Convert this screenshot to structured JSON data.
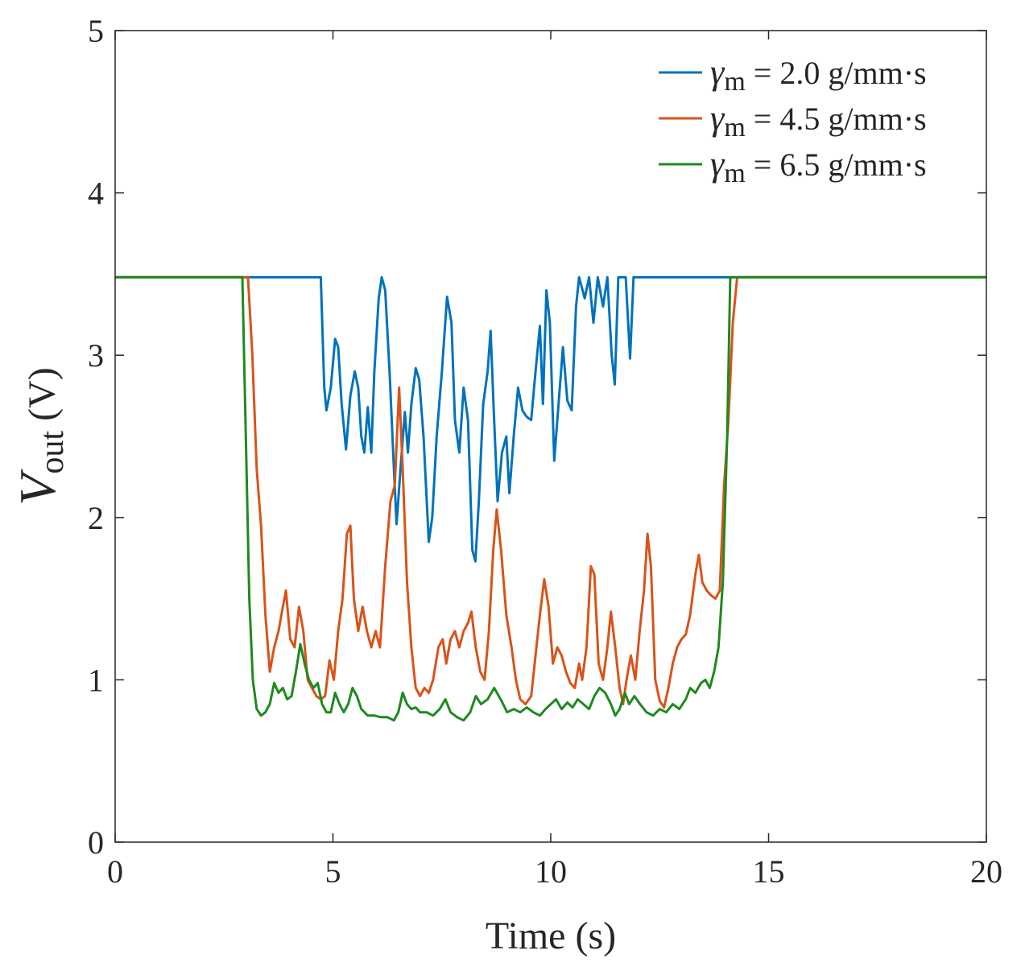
{
  "chart_data": {
    "type": "line",
    "title": "",
    "xlabel": "Time (s)",
    "ylabel": {
      "main": "V",
      "sub": "out",
      "unit": " (V)"
    },
    "xlim": [
      0,
      20
    ],
    "ylim": [
      0,
      5
    ],
    "xticks": [
      0,
      5,
      10,
      15,
      20
    ],
    "yticks": [
      0,
      1,
      2,
      3,
      4,
      5
    ],
    "grid": false,
    "legend_position": "top-right",
    "series": [
      {
        "name": "γm = 2.0 g/mm·s",
        "legend": {
          "symbol": "γ",
          "sub": "m",
          "rest": " = 2.0 g/mm·s"
        },
        "color": "#0072BD",
        "points": [
          [
            0,
            3.48
          ],
          [
            4.72,
            3.48
          ],
          [
            4.8,
            2.8
          ],
          [
            4.85,
            2.66
          ],
          [
            4.95,
            2.8
          ],
          [
            5.05,
            3.1
          ],
          [
            5.12,
            3.05
          ],
          [
            5.2,
            2.7
          ],
          [
            5.3,
            2.42
          ],
          [
            5.4,
            2.75
          ],
          [
            5.5,
            2.9
          ],
          [
            5.58,
            2.8
          ],
          [
            5.65,
            2.5
          ],
          [
            5.72,
            2.4
          ],
          [
            5.8,
            2.68
          ],
          [
            5.88,
            2.4
          ],
          [
            5.95,
            2.9
          ],
          [
            6.05,
            3.35
          ],
          [
            6.12,
            3.48
          ],
          [
            6.2,
            3.4
          ],
          [
            6.3,
            2.9
          ],
          [
            6.4,
            2.3
          ],
          [
            6.46,
            1.96
          ],
          [
            6.55,
            2.3
          ],
          [
            6.65,
            2.65
          ],
          [
            6.72,
            2.4
          ],
          [
            6.8,
            2.7
          ],
          [
            6.9,
            2.92
          ],
          [
            6.98,
            2.85
          ],
          [
            7.08,
            2.5
          ],
          [
            7.2,
            1.85
          ],
          [
            7.28,
            2.0
          ],
          [
            7.38,
            2.5
          ],
          [
            7.5,
            2.9
          ],
          [
            7.62,
            3.36
          ],
          [
            7.72,
            3.2
          ],
          [
            7.8,
            2.6
          ],
          [
            7.9,
            2.4
          ],
          [
            8.0,
            2.8
          ],
          [
            8.1,
            2.6
          ],
          [
            8.2,
            1.8
          ],
          [
            8.27,
            1.73
          ],
          [
            8.35,
            2.1
          ],
          [
            8.45,
            2.7
          ],
          [
            8.55,
            2.9
          ],
          [
            8.62,
            3.15
          ],
          [
            8.7,
            2.6
          ],
          [
            8.78,
            2.1
          ],
          [
            8.88,
            2.4
          ],
          [
            8.98,
            2.5
          ],
          [
            9.05,
            2.15
          ],
          [
            9.15,
            2.5
          ],
          [
            9.25,
            2.8
          ],
          [
            9.35,
            2.66
          ],
          [
            9.45,
            2.62
          ],
          [
            9.55,
            2.6
          ],
          [
            9.65,
            2.9
          ],
          [
            9.75,
            3.18
          ],
          [
            9.82,
            2.7
          ],
          [
            9.9,
            3.4
          ],
          [
            9.98,
            3.2
          ],
          [
            10.08,
            2.35
          ],
          [
            10.18,
            2.7
          ],
          [
            10.28,
            3.05
          ],
          [
            10.38,
            2.72
          ],
          [
            10.48,
            2.66
          ],
          [
            10.58,
            3.3
          ],
          [
            10.65,
            3.48
          ],
          [
            10.78,
            3.35
          ],
          [
            10.88,
            3.48
          ],
          [
            10.98,
            3.2
          ],
          [
            11.08,
            3.48
          ],
          [
            11.2,
            3.3
          ],
          [
            11.3,
            3.48
          ],
          [
            11.4,
            3.0
          ],
          [
            11.47,
            2.82
          ],
          [
            11.55,
            3.48
          ],
          [
            11.72,
            3.48
          ],
          [
            11.82,
            2.98
          ],
          [
            11.9,
            3.48
          ],
          [
            20,
            3.48
          ]
        ]
      },
      {
        "name": "γm = 4.5 g/mm·s",
        "legend": {
          "symbol": "γ",
          "sub": "m",
          "rest": " = 4.5 g/mm·s"
        },
        "color": "#D95319",
        "points": [
          [
            0,
            3.48
          ],
          [
            3.05,
            3.48
          ],
          [
            3.15,
            3.0
          ],
          [
            3.25,
            2.3
          ],
          [
            3.35,
            1.95
          ],
          [
            3.45,
            1.4
          ],
          [
            3.55,
            1.05
          ],
          [
            3.65,
            1.2
          ],
          [
            3.75,
            1.3
          ],
          [
            3.85,
            1.45
          ],
          [
            3.92,
            1.55
          ],
          [
            4.02,
            1.25
          ],
          [
            4.12,
            1.2
          ],
          [
            4.22,
            1.45
          ],
          [
            4.32,
            1.3
          ],
          [
            4.42,
            1.0
          ],
          [
            4.52,
            0.95
          ],
          [
            4.62,
            0.9
          ],
          [
            4.72,
            0.88
          ],
          [
            4.82,
            0.9
          ],
          [
            4.92,
            1.12
          ],
          [
            5.02,
            1.0
          ],
          [
            5.12,
            1.3
          ],
          [
            5.22,
            1.5
          ],
          [
            5.32,
            1.9
          ],
          [
            5.4,
            1.95
          ],
          [
            5.48,
            1.5
          ],
          [
            5.58,
            1.3
          ],
          [
            5.68,
            1.45
          ],
          [
            5.78,
            1.3
          ],
          [
            5.88,
            1.2
          ],
          [
            5.98,
            1.3
          ],
          [
            6.08,
            1.2
          ],
          [
            6.2,
            1.7
          ],
          [
            6.32,
            2.1
          ],
          [
            6.42,
            2.2
          ],
          [
            6.52,
            2.8
          ],
          [
            6.6,
            2.3
          ],
          [
            6.7,
            1.6
          ],
          [
            6.8,
            1.2
          ],
          [
            6.9,
            0.95
          ],
          [
            7.0,
            0.9
          ],
          [
            7.1,
            0.95
          ],
          [
            7.2,
            0.92
          ],
          [
            7.3,
            1.0
          ],
          [
            7.42,
            1.2
          ],
          [
            7.52,
            1.25
          ],
          [
            7.6,
            1.1
          ],
          [
            7.7,
            1.25
          ],
          [
            7.8,
            1.3
          ],
          [
            7.9,
            1.2
          ],
          [
            8.0,
            1.3
          ],
          [
            8.1,
            1.35
          ],
          [
            8.18,
            1.42
          ],
          [
            8.28,
            1.2
          ],
          [
            8.38,
            1.05
          ],
          [
            8.48,
            1.0
          ],
          [
            8.58,
            1.3
          ],
          [
            8.68,
            1.8
          ],
          [
            8.76,
            2.05
          ],
          [
            8.86,
            1.8
          ],
          [
            8.98,
            1.4
          ],
          [
            9.1,
            1.2
          ],
          [
            9.2,
            1.0
          ],
          [
            9.3,
            0.88
          ],
          [
            9.42,
            0.85
          ],
          [
            9.55,
            0.9
          ],
          [
            9.65,
            1.15
          ],
          [
            9.75,
            1.4
          ],
          [
            9.85,
            1.62
          ],
          [
            9.95,
            1.45
          ],
          [
            10.05,
            1.1
          ],
          [
            10.15,
            1.2
          ],
          [
            10.25,
            1.15
          ],
          [
            10.35,
            1.05
          ],
          [
            10.45,
            0.98
          ],
          [
            10.55,
            0.95
          ],
          [
            10.65,
            1.1
          ],
          [
            10.72,
            1.0
          ],
          [
            10.82,
            1.2
          ],
          [
            10.92,
            1.7
          ],
          [
            11.0,
            1.65
          ],
          [
            11.1,
            1.1
          ],
          [
            11.2,
            1.0
          ],
          [
            11.3,
            1.2
          ],
          [
            11.38,
            1.42
          ],
          [
            11.48,
            1.2
          ],
          [
            11.58,
            0.95
          ],
          [
            11.66,
            0.85
          ],
          [
            11.74,
            1.0
          ],
          [
            11.84,
            1.15
          ],
          [
            11.94,
            1.0
          ],
          [
            12.04,
            1.3
          ],
          [
            12.14,
            1.55
          ],
          [
            12.22,
            1.9
          ],
          [
            12.3,
            1.7
          ],
          [
            12.4,
            1.0
          ],
          [
            12.5,
            0.87
          ],
          [
            12.6,
            0.83
          ],
          [
            12.7,
            0.95
          ],
          [
            12.8,
            1.1
          ],
          [
            12.9,
            1.2
          ],
          [
            13.0,
            1.25
          ],
          [
            13.1,
            1.28
          ],
          [
            13.2,
            1.4
          ],
          [
            13.32,
            1.65
          ],
          [
            13.4,
            1.77
          ],
          [
            13.48,
            1.6
          ],
          [
            13.58,
            1.55
          ],
          [
            13.68,
            1.52
          ],
          [
            13.78,
            1.5
          ],
          [
            13.88,
            1.55
          ],
          [
            13.98,
            2.2
          ],
          [
            14.08,
            2.6
          ],
          [
            14.18,
            3.2
          ],
          [
            14.28,
            3.48
          ],
          [
            20,
            3.48
          ]
        ]
      },
      {
        "name": "γm = 6.5 g/mm·s",
        "legend": {
          "symbol": "γ",
          "sub": "m",
          "rest": " = 6.5 g/mm·s"
        },
        "color": "#1E8A1E",
        "points": [
          [
            0,
            3.48
          ],
          [
            2.92,
            3.48
          ],
          [
            3.0,
            2.5
          ],
          [
            3.08,
            1.5
          ],
          [
            3.16,
            1.0
          ],
          [
            3.25,
            0.82
          ],
          [
            3.35,
            0.78
          ],
          [
            3.45,
            0.8
          ],
          [
            3.55,
            0.85
          ],
          [
            3.65,
            0.98
          ],
          [
            3.75,
            0.92
          ],
          [
            3.85,
            0.95
          ],
          [
            3.95,
            0.88
          ],
          [
            4.05,
            0.9
          ],
          [
            4.15,
            1.05
          ],
          [
            4.25,
            1.22
          ],
          [
            4.35,
            1.1
          ],
          [
            4.45,
            1.0
          ],
          [
            4.55,
            0.95
          ],
          [
            4.65,
            0.98
          ],
          [
            4.75,
            0.85
          ],
          [
            4.85,
            0.8
          ],
          [
            4.95,
            0.8
          ],
          [
            5.05,
            0.92
          ],
          [
            5.15,
            0.85
          ],
          [
            5.25,
            0.8
          ],
          [
            5.35,
            0.85
          ],
          [
            5.45,
            0.95
          ],
          [
            5.55,
            0.9
          ],
          [
            5.65,
            0.82
          ],
          [
            5.8,
            0.78
          ],
          [
            5.95,
            0.78
          ],
          [
            6.1,
            0.77
          ],
          [
            6.25,
            0.77
          ],
          [
            6.4,
            0.75
          ],
          [
            6.5,
            0.8
          ],
          [
            6.6,
            0.92
          ],
          [
            6.7,
            0.85
          ],
          [
            6.8,
            0.82
          ],
          [
            6.9,
            0.83
          ],
          [
            7.0,
            0.8
          ],
          [
            7.15,
            0.8
          ],
          [
            7.3,
            0.78
          ],
          [
            7.45,
            0.82
          ],
          [
            7.58,
            0.88
          ],
          [
            7.7,
            0.8
          ],
          [
            7.85,
            0.77
          ],
          [
            8.0,
            0.75
          ],
          [
            8.15,
            0.8
          ],
          [
            8.28,
            0.9
          ],
          [
            8.4,
            0.85
          ],
          [
            8.55,
            0.88
          ],
          [
            8.7,
            0.95
          ],
          [
            8.85,
            0.88
          ],
          [
            9.0,
            0.8
          ],
          [
            9.15,
            0.82
          ],
          [
            9.3,
            0.8
          ],
          [
            9.45,
            0.83
          ],
          [
            9.6,
            0.8
          ],
          [
            9.75,
            0.78
          ],
          [
            9.88,
            0.82
          ],
          [
            10.0,
            0.85
          ],
          [
            10.12,
            0.88
          ],
          [
            10.25,
            0.82
          ],
          [
            10.38,
            0.86
          ],
          [
            10.5,
            0.83
          ],
          [
            10.62,
            0.88
          ],
          [
            10.75,
            0.85
          ],
          [
            10.88,
            0.82
          ],
          [
            11.0,
            0.9
          ],
          [
            11.12,
            0.95
          ],
          [
            11.25,
            0.92
          ],
          [
            11.38,
            0.85
          ],
          [
            11.48,
            0.78
          ],
          [
            11.58,
            0.82
          ],
          [
            11.7,
            0.92
          ],
          [
            11.8,
            0.85
          ],
          [
            11.92,
            0.9
          ],
          [
            12.05,
            0.85
          ],
          [
            12.2,
            0.8
          ],
          [
            12.35,
            0.78
          ],
          [
            12.5,
            0.82
          ],
          [
            12.65,
            0.8
          ],
          [
            12.8,
            0.85
          ],
          [
            12.95,
            0.82
          ],
          [
            13.1,
            0.88
          ],
          [
            13.2,
            0.95
          ],
          [
            13.32,
            0.92
          ],
          [
            13.45,
            0.98
          ],
          [
            13.55,
            1.0
          ],
          [
            13.65,
            0.95
          ],
          [
            13.75,
            1.05
          ],
          [
            13.85,
            1.2
          ],
          [
            13.95,
            1.6
          ],
          [
            14.05,
            2.5
          ],
          [
            14.12,
            3.48
          ],
          [
            20,
            3.48
          ]
        ]
      }
    ]
  }
}
